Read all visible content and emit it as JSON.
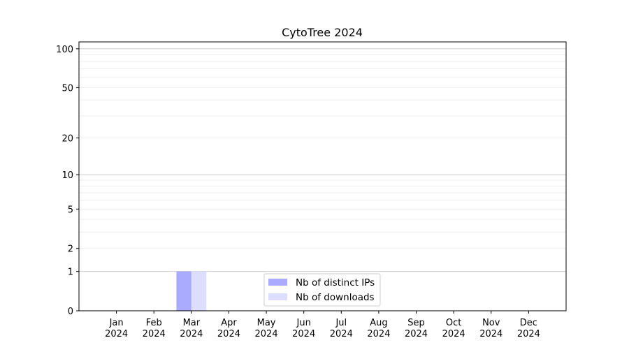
{
  "chart_data": {
    "type": "bar",
    "title": "CytoTree 2024",
    "xlabel": "",
    "ylabel": "",
    "y_scale": "log(1+y)",
    "ylim": [
      0,
      113
    ],
    "y_ticks": [
      0,
      1,
      2,
      5,
      10,
      20,
      50,
      100
    ],
    "y_tick_labels": [
      "0",
      "1",
      "2",
      "5",
      "10",
      "20",
      "50",
      "100"
    ],
    "grid": true,
    "categories": [
      "Jan\n2024",
      "Feb\n2024",
      "Mar\n2024",
      "Apr\n2024",
      "May\n2024",
      "Jun\n2024",
      "Jul\n2024",
      "Aug\n2024",
      "Sep\n2024",
      "Oct\n2024",
      "Nov\n2024",
      "Dec\n2024"
    ],
    "x_tick_labels": [
      [
        "Jan",
        "2024"
      ],
      [
        "Feb",
        "2024"
      ],
      [
        "Mar",
        "2024"
      ],
      [
        "Apr",
        "2024"
      ],
      [
        "May",
        "2024"
      ],
      [
        "Jun",
        "2024"
      ],
      [
        "Jul",
        "2024"
      ],
      [
        "Aug",
        "2024"
      ],
      [
        "Sep",
        "2024"
      ],
      [
        "Oct",
        "2024"
      ],
      [
        "Nov",
        "2024"
      ],
      [
        "Dec",
        "2024"
      ]
    ],
    "series": [
      {
        "name": "Nb of distinct IPs",
        "color": "#aaaaff",
        "values": [
          0,
          0,
          1,
          0,
          0,
          0,
          0,
          0,
          0,
          0,
          0,
          0
        ]
      },
      {
        "name": "Nb of downloads",
        "color": "#ddddff",
        "values": [
          0,
          0,
          1,
          0,
          0,
          0,
          0,
          0,
          0,
          0,
          0,
          0
        ]
      }
    ],
    "legend_position": "lower-center"
  }
}
